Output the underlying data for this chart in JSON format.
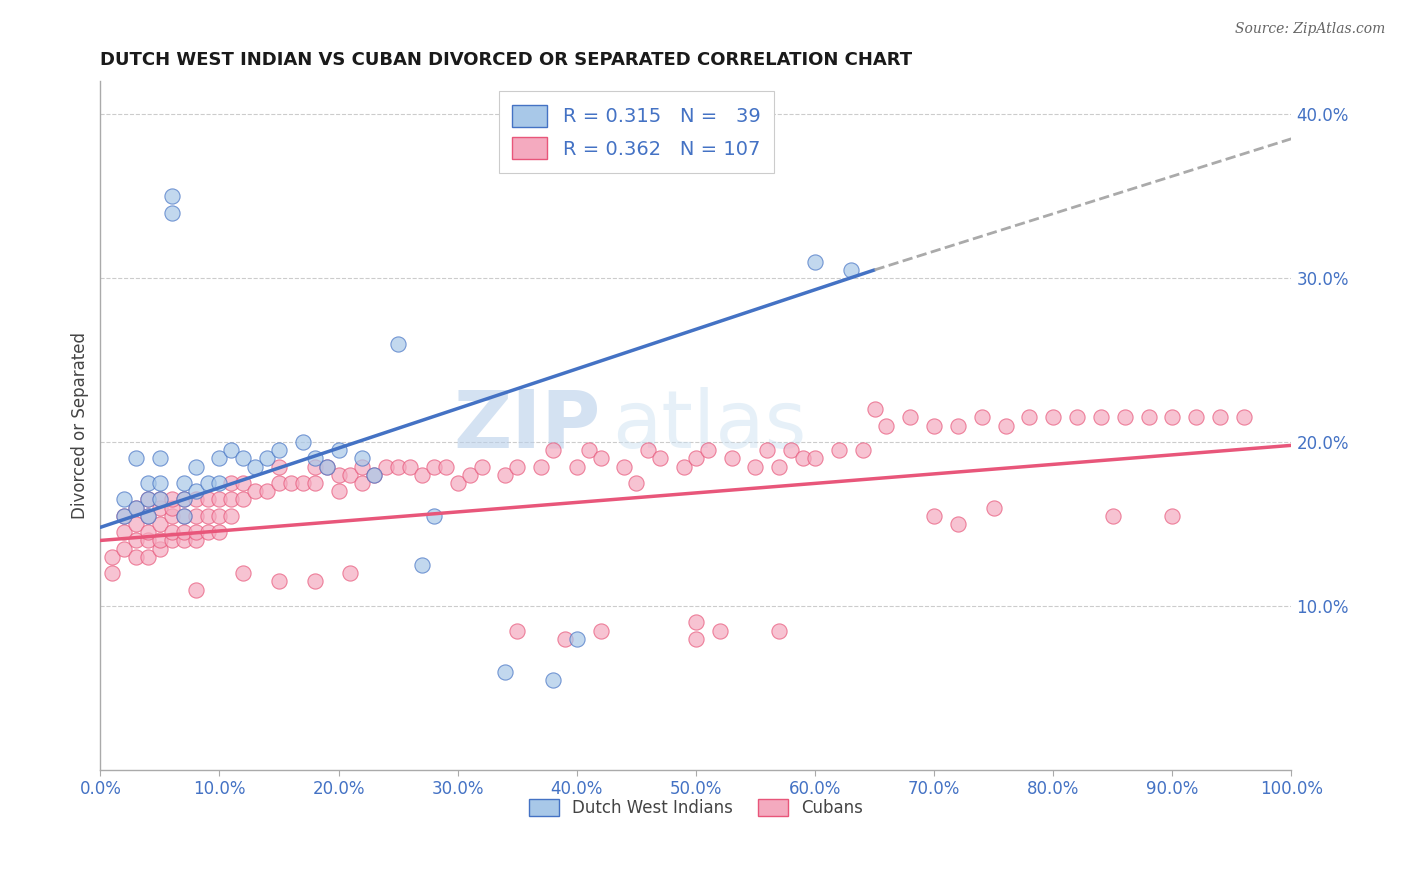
{
  "title": "DUTCH WEST INDIAN VS CUBAN DIVORCED OR SEPARATED CORRELATION CHART",
  "source": "Source: ZipAtlas.com",
  "ylabel": "Divorced or Separated",
  "xlabel": "",
  "xlim": [
    0.0,
    1.0
  ],
  "ylim": [
    0.0,
    0.42
  ],
  "xticks": [
    0.0,
    0.1,
    0.2,
    0.3,
    0.4,
    0.5,
    0.6,
    0.7,
    0.8,
    0.9,
    1.0
  ],
  "yticks": [
    0.1,
    0.2,
    0.3,
    0.4
  ],
  "blue_color": "#A8C8E8",
  "pink_color": "#F4AABF",
  "blue_line_color": "#4472C4",
  "pink_line_color": "#E8567A",
  "legend_blue_R": "R = 0.315",
  "legend_blue_N": "N =  39",
  "legend_pink_R": "R = 0.362",
  "legend_pink_N": "N = 107",
  "watermark_zip": "ZIP",
  "watermark_atlas": "atlas",
  "blue_line_x0": 0.0,
  "blue_line_y0": 0.148,
  "blue_line_x1": 0.65,
  "blue_line_y1": 0.305,
  "blue_line_dash_x0": 0.65,
  "blue_line_dash_y0": 0.305,
  "blue_line_dash_x1": 1.0,
  "blue_line_dash_y1": 0.385,
  "pink_line_x0": 0.0,
  "pink_line_y0": 0.14,
  "pink_line_x1": 1.0,
  "pink_line_y1": 0.198,
  "blue_scatter_x": [
    0.02,
    0.02,
    0.03,
    0.03,
    0.04,
    0.04,
    0.04,
    0.05,
    0.05,
    0.05,
    0.06,
    0.06,
    0.07,
    0.07,
    0.07,
    0.08,
    0.08,
    0.09,
    0.1,
    0.1,
    0.11,
    0.12,
    0.13,
    0.14,
    0.15,
    0.17,
    0.18,
    0.19,
    0.2,
    0.22,
    0.23,
    0.25,
    0.27,
    0.28,
    0.34,
    0.38,
    0.4,
    0.6,
    0.63
  ],
  "blue_scatter_y": [
    0.155,
    0.165,
    0.16,
    0.19,
    0.155,
    0.165,
    0.175,
    0.165,
    0.175,
    0.19,
    0.35,
    0.34,
    0.155,
    0.165,
    0.175,
    0.17,
    0.185,
    0.175,
    0.175,
    0.19,
    0.195,
    0.19,
    0.185,
    0.19,
    0.195,
    0.2,
    0.19,
    0.185,
    0.195,
    0.19,
    0.18,
    0.26,
    0.125,
    0.155,
    0.06,
    0.055,
    0.08,
    0.31,
    0.305
  ],
  "pink_scatter_x": [
    0.01,
    0.01,
    0.02,
    0.02,
    0.02,
    0.03,
    0.03,
    0.03,
    0.03,
    0.04,
    0.04,
    0.04,
    0.04,
    0.04,
    0.05,
    0.05,
    0.05,
    0.05,
    0.05,
    0.06,
    0.06,
    0.06,
    0.06,
    0.06,
    0.07,
    0.07,
    0.07,
    0.07,
    0.08,
    0.08,
    0.08,
    0.08,
    0.09,
    0.09,
    0.09,
    0.1,
    0.1,
    0.1,
    0.11,
    0.11,
    0.11,
    0.12,
    0.12,
    0.13,
    0.14,
    0.15,
    0.15,
    0.16,
    0.17,
    0.18,
    0.18,
    0.19,
    0.2,
    0.2,
    0.21,
    0.22,
    0.22,
    0.23,
    0.24,
    0.25,
    0.26,
    0.27,
    0.28,
    0.29,
    0.3,
    0.31,
    0.32,
    0.34,
    0.35,
    0.37,
    0.38,
    0.4,
    0.41,
    0.42,
    0.44,
    0.45,
    0.46,
    0.47,
    0.49,
    0.5,
    0.51,
    0.53,
    0.55,
    0.56,
    0.57,
    0.58,
    0.59,
    0.6,
    0.62,
    0.64,
    0.65,
    0.66,
    0.68,
    0.7,
    0.72,
    0.74,
    0.76,
    0.78,
    0.8,
    0.82,
    0.84,
    0.86,
    0.88,
    0.9,
    0.92,
    0.94,
    0.96
  ],
  "pink_scatter_y": [
    0.13,
    0.12,
    0.135,
    0.145,
    0.155,
    0.13,
    0.14,
    0.15,
    0.16,
    0.13,
    0.14,
    0.145,
    0.155,
    0.165,
    0.135,
    0.14,
    0.15,
    0.16,
    0.165,
    0.14,
    0.145,
    0.155,
    0.16,
    0.165,
    0.14,
    0.145,
    0.155,
    0.165,
    0.14,
    0.145,
    0.155,
    0.165,
    0.145,
    0.155,
    0.165,
    0.145,
    0.155,
    0.165,
    0.155,
    0.165,
    0.175,
    0.165,
    0.175,
    0.17,
    0.17,
    0.175,
    0.185,
    0.175,
    0.175,
    0.175,
    0.185,
    0.185,
    0.17,
    0.18,
    0.18,
    0.175,
    0.185,
    0.18,
    0.185,
    0.185,
    0.185,
    0.18,
    0.185,
    0.185,
    0.175,
    0.18,
    0.185,
    0.18,
    0.185,
    0.185,
    0.195,
    0.185,
    0.195,
    0.19,
    0.185,
    0.175,
    0.195,
    0.19,
    0.185,
    0.19,
    0.195,
    0.19,
    0.185,
    0.195,
    0.185,
    0.195,
    0.19,
    0.19,
    0.195,
    0.195,
    0.22,
    0.21,
    0.215,
    0.21,
    0.21,
    0.215,
    0.21,
    0.215,
    0.215,
    0.215,
    0.215,
    0.215,
    0.215,
    0.215,
    0.215,
    0.215,
    0.215
  ],
  "pink_extra_x": [
    0.08,
    0.12,
    0.15,
    0.18,
    0.21,
    0.35,
    0.39,
    0.42,
    0.5,
    0.5,
    0.52,
    0.57,
    0.7,
    0.72,
    0.75,
    0.85,
    0.9
  ],
  "pink_extra_y": [
    0.11,
    0.12,
    0.115,
    0.115,
    0.12,
    0.085,
    0.08,
    0.085,
    0.08,
    0.09,
    0.085,
    0.085,
    0.155,
    0.15,
    0.16,
    0.155,
    0.155
  ]
}
